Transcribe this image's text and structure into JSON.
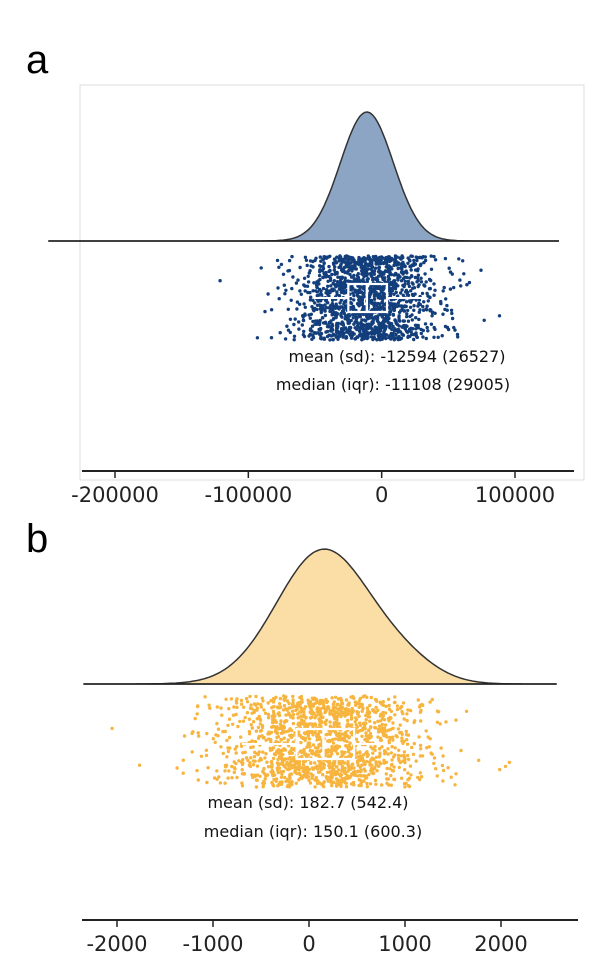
{
  "chart_data": [
    {
      "type": "raincloud",
      "panel_label": "a",
      "stats": {
        "mean": -12594,
        "sd": 26527,
        "median": -11108,
        "iqr": 29005,
        "mean_text": "mean (sd): -12594 (26527)",
        "median_text": "median (iqr): -11108 (29005)"
      },
      "xlim": [
        -250000,
        150000
      ],
      "ticks": [
        -200000,
        -100000,
        0,
        100000
      ],
      "tick_labels": [
        "-200000",
        "-100000",
        "0",
        "100000"
      ],
      "box": {
        "q1": -25000,
        "median": -11108,
        "q3": 4000,
        "whisker_low": -50000,
        "whisker_high": 32000
      },
      "color_fill": "#8da5c4",
      "color_points": "#133e7c",
      "density_range": [
        -250000,
        133000
      ],
      "points_range": [
        -240000,
        133000
      ],
      "grid": false
    },
    {
      "type": "raincloud",
      "panel_label": "b",
      "stats": {
        "mean": 182.7,
        "sd": 542.4,
        "median": 150.1,
        "iqr": 600.3,
        "mean_text": "mean (sd): 182.7 (542.4)",
        "median_text": "median (iqr): 150.1 (600.3)"
      },
      "xlim": [
        -2400,
        2700
      ],
      "ticks": [
        -2000,
        -1000,
        0,
        1000,
        2000
      ],
      "tick_labels": [
        "-2000",
        "-1000",
        "0",
        "1000",
        "2000"
      ],
      "box": {
        "q1": -130,
        "median": 150.1,
        "q3": 470,
        "whisker_low": -700,
        "whisker_high": 700
      },
      "color_fill": "#fbdea6",
      "color_points": "#f7b53f",
      "density_range": [
        -2350,
        2580
      ],
      "points_range": [
        -2300,
        2550
      ],
      "grid": false
    }
  ]
}
